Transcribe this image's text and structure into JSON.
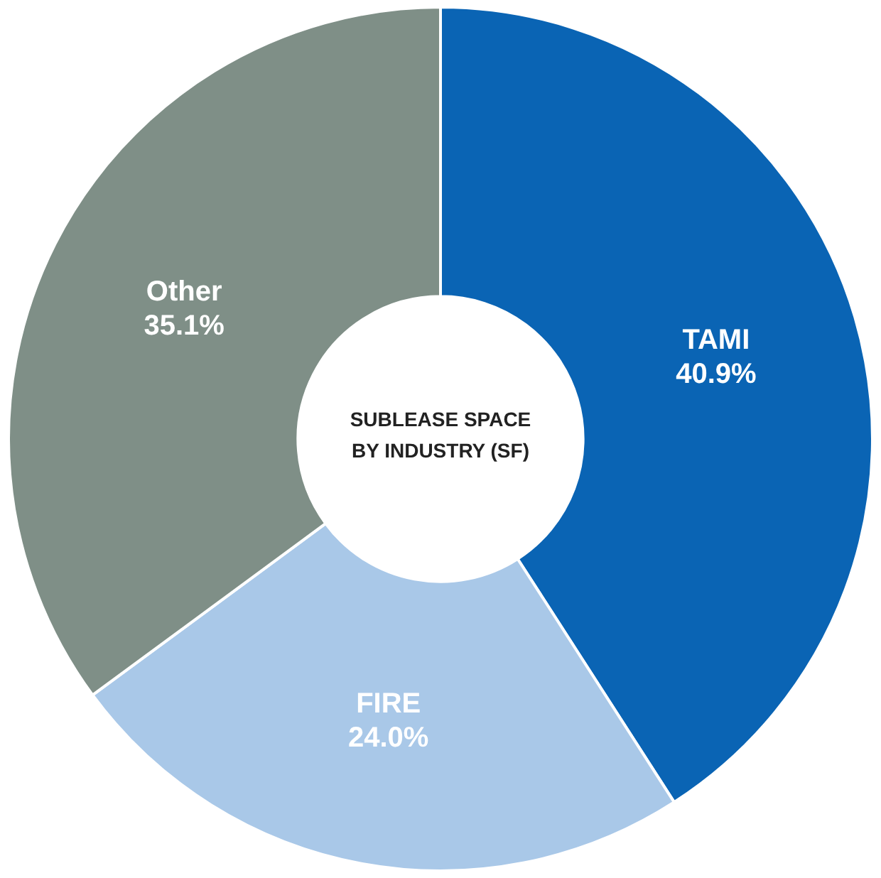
{
  "chart_data": {
    "type": "donut",
    "title": "SUBLEASE SPACE BY INDUSTRY (SF)",
    "categories": [
      "TAMI",
      "FIRE",
      "Other"
    ],
    "values": [
      40.9,
      24.0,
      35.1
    ],
    "value_labels": [
      "40.9%",
      "24.0%",
      "35.1%"
    ],
    "colors": [
      "#0a64b4",
      "#a9c8e8",
      "#7f8f87"
    ],
    "legend": false
  }
}
